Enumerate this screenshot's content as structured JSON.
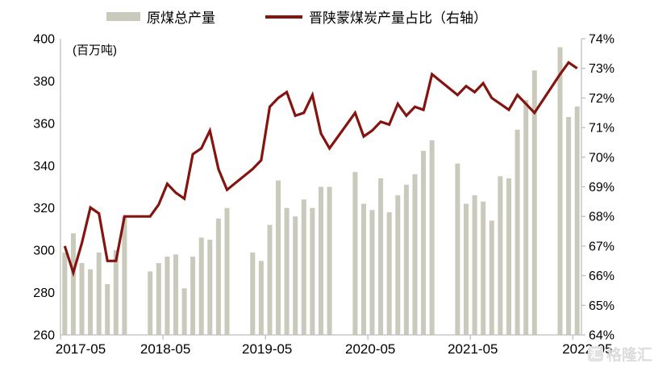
{
  "legend": {
    "items": [
      {
        "label": "原煤总产量",
        "swatch": "bar"
      },
      {
        "label": "晋陕蒙煤炭产量占比（右轴）",
        "swatch": "line"
      }
    ]
  },
  "unit_label": "(百万吨)",
  "watermark": {
    "logo_glyph": "汇",
    "text": "格隆汇"
  },
  "colors": {
    "bar": "#C9C9BC",
    "line": "#841410",
    "axis": "#BFBFBF",
    "text": "#000000"
  },
  "chart_data": {
    "type": "bar+line",
    "title": "",
    "left_axis": {
      "label": "(百万吨)",
      "min": 260,
      "max": 400,
      "step": 20
    },
    "right_axis": {
      "label": "%",
      "min": 64,
      "max": 74,
      "step": 1,
      "suffix": "%"
    },
    "x_tick_labels": [
      "2017-05",
      "2018-05",
      "2019-05",
      "2020-05",
      "2021-05",
      "2022-05"
    ],
    "series": [
      {
        "name": "原煤总产量",
        "type": "bar",
        "axis": "left"
      },
      {
        "name": "晋陕蒙煤炭产量占比（右轴）",
        "type": "line",
        "axis": "right"
      }
    ],
    "months": [
      {
        "m": "2017-05",
        "bar": 299,
        "pct": 67.0
      },
      {
        "m": "2017-06",
        "bar": 308,
        "pct": 66.1
      },
      {
        "m": "2017-07",
        "bar": 294,
        "pct": 67.1
      },
      {
        "m": "2017-08",
        "bar": 291,
        "pct": 68.3
      },
      {
        "m": "2017-09",
        "bar": 299,
        "pct": 68.1
      },
      {
        "m": "2017-10",
        "bar": 284,
        "pct": 66.5
      },
      {
        "m": "2017-11",
        "bar": 300,
        "pct": 66.5
      },
      {
        "m": "2017-12",
        "bar": 316,
        "pct": 68.0
      },
      {
        "m": "2018-01",
        "bar": null,
        "pct": null
      },
      {
        "m": "2018-02",
        "bar": null,
        "pct": null
      },
      {
        "m": "2018-03",
        "bar": 290,
        "pct": 68.0
      },
      {
        "m": "2018-04",
        "bar": 294,
        "pct": 68.4
      },
      {
        "m": "2018-05",
        "bar": 297,
        "pct": 69.1
      },
      {
        "m": "2018-06",
        "bar": 298,
        "pct": 68.8
      },
      {
        "m": "2018-07",
        "bar": 282,
        "pct": 68.6
      },
      {
        "m": "2018-08",
        "bar": 297,
        "pct": 70.1
      },
      {
        "m": "2018-09",
        "bar": 306,
        "pct": 70.3
      },
      {
        "m": "2018-10",
        "bar": 305,
        "pct": 70.9
      },
      {
        "m": "2018-11",
        "bar": 315,
        "pct": 69.6
      },
      {
        "m": "2018-12",
        "bar": 320,
        "pct": 68.9
      },
      {
        "m": "2019-01",
        "bar": null,
        "pct": null
      },
      {
        "m": "2019-02",
        "bar": null,
        "pct": null
      },
      {
        "m": "2019-03",
        "bar": 299,
        "pct": 69.6
      },
      {
        "m": "2019-04",
        "bar": 295,
        "pct": 69.9
      },
      {
        "m": "2019-05",
        "bar": 312,
        "pct": 71.7
      },
      {
        "m": "2019-06",
        "bar": 333,
        "pct": 72.0
      },
      {
        "m": "2019-07",
        "bar": 320,
        "pct": 72.2
      },
      {
        "m": "2019-08",
        "bar": 316,
        "pct": 71.4
      },
      {
        "m": "2019-09",
        "bar": 324,
        "pct": 71.5
      },
      {
        "m": "2019-10",
        "bar": 320,
        "pct": 72.1
      },
      {
        "m": "2019-11",
        "bar": 330,
        "pct": 70.8
      },
      {
        "m": "2019-12",
        "bar": 330,
        "pct": 70.3
      },
      {
        "m": "2020-01",
        "bar": null,
        "pct": null
      },
      {
        "m": "2020-02",
        "bar": null,
        "pct": null
      },
      {
        "m": "2020-03",
        "bar": 337,
        "pct": 71.5
      },
      {
        "m": "2020-04",
        "bar": 322,
        "pct": 70.7
      },
      {
        "m": "2020-05",
        "bar": 319,
        "pct": 70.9
      },
      {
        "m": "2020-06",
        "bar": 334,
        "pct": 71.2
      },
      {
        "m": "2020-07",
        "bar": 318,
        "pct": 71.1
      },
      {
        "m": "2020-08",
        "bar": 326,
        "pct": 71.8
      },
      {
        "m": "2020-09",
        "bar": 331,
        "pct": 71.4
      },
      {
        "m": "2020-10",
        "bar": 336,
        "pct": 71.7
      },
      {
        "m": "2020-11",
        "bar": 347,
        "pct": 71.6
      },
      {
        "m": "2020-12",
        "bar": 352,
        "pct": 72.8
      },
      {
        "m": "2021-01",
        "bar": null,
        "pct": null
      },
      {
        "m": "2021-02",
        "bar": null,
        "pct": null
      },
      {
        "m": "2021-03",
        "bar": 341,
        "pct": 72.1
      },
      {
        "m": "2021-04",
        "bar": 322,
        "pct": 72.4
      },
      {
        "m": "2021-05",
        "bar": 326,
        "pct": 72.2
      },
      {
        "m": "2021-06",
        "bar": 323,
        "pct": 72.5
      },
      {
        "m": "2021-07",
        "bar": 314,
        "pct": 72.0
      },
      {
        "m": "2021-08",
        "bar": 335,
        "pct": 71.8
      },
      {
        "m": "2021-09",
        "bar": 334,
        "pct": 71.6
      },
      {
        "m": "2021-10",
        "bar": 357,
        "pct": 72.1
      },
      {
        "m": "2021-11",
        "bar": 371,
        "pct": 71.8
      },
      {
        "m": "2021-12",
        "bar": 385,
        "pct": 71.5
      },
      {
        "m": "2022-01",
        "bar": null,
        "pct": null
      },
      {
        "m": "2022-02",
        "bar": null,
        "pct": null
      },
      {
        "m": "2022-03",
        "bar": 396,
        "pct": 72.8
      },
      {
        "m": "2022-04",
        "bar": 363,
        "pct": 73.2
      },
      {
        "m": "2022-05",
        "bar": 368,
        "pct": 73.0
      }
    ]
  }
}
